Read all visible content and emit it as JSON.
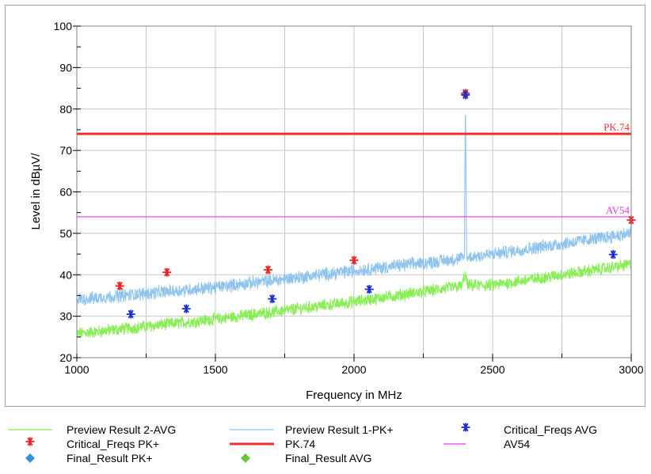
{
  "chart_data": {
    "type": "line",
    "xlabel": "Frequency in MHz",
    "ylabel": "Level in dBµV/",
    "xlim": [
      1000,
      3000
    ],
    "ylim": [
      20,
      100
    ],
    "x_ticks": [
      "1000",
      "1500",
      "2000",
      "2500",
      "3000"
    ],
    "y_ticks": [
      "20",
      "30",
      "40",
      "50",
      "60",
      "70",
      "80",
      "90",
      "100"
    ],
    "grid": true,
    "legend_position": "bottom",
    "series": [
      {
        "name": "Preview Result 2-AVG",
        "kind": "noise-band",
        "color": "#88ee55",
        "points": [
          [
            1000,
            25.8
          ],
          [
            1500,
            29.3
          ],
          [
            2000,
            33.5
          ],
          [
            2390,
            37.3
          ],
          [
            2400,
            40.2
          ],
          [
            2410,
            37.4
          ],
          [
            2500,
            37.5
          ],
          [
            3000,
            42.5
          ]
        ],
        "ripple": 1.3
      },
      {
        "name": "Preview Result 1-PK+",
        "kind": "noise-band",
        "color": "#8fc4f0",
        "points": [
          [
            1000,
            34.0
          ],
          [
            1500,
            37.0
          ],
          [
            2000,
            41.0
          ],
          [
            2398,
            44.0
          ],
          [
            2402,
            83.5
          ],
          [
            2406,
            44.2
          ],
          [
            2500,
            45.0
          ],
          [
            3000,
            50.0
          ]
        ],
        "ripple": 1.4
      },
      {
        "name": "Critical_Freqs PK+",
        "kind": "markers",
        "marker": "star",
        "color": "#ee2222",
        "points": [
          [
            1155,
            37.3
          ],
          [
            1325,
            40.6
          ],
          [
            1690,
            41.2
          ],
          [
            2000,
            43.5
          ],
          [
            2402,
            83.8
          ],
          [
            3000,
            53.2
          ]
        ]
      },
      {
        "name": "Critical_Freqs AVG",
        "kind": "markers",
        "marker": "star",
        "color": "#1a2fd0",
        "points": [
          [
            1195,
            30.5
          ],
          [
            1395,
            31.8
          ],
          [
            1705,
            34.2
          ],
          [
            2055,
            36.5
          ],
          [
            2402,
            83.4
          ],
          [
            2935,
            44.9
          ]
        ]
      },
      {
        "name": "PK.74",
        "kind": "limit",
        "color": "#ee3030",
        "value": 74,
        "label": "PK.74"
      },
      {
        "name": "AV54",
        "kind": "limit",
        "color": "#ee33ee",
        "value": 54,
        "label": "AV54"
      },
      {
        "name": "Final_Result PK+",
        "kind": "markers",
        "marker": "diamond",
        "color": "#3a8ee0",
        "points": []
      },
      {
        "name": "Final_Result AVG",
        "kind": "markers",
        "marker": "diamond",
        "color": "#66c640",
        "points": []
      }
    ],
    "limit_labels": {
      "pk": "PK.74",
      "av": "AV54"
    }
  },
  "legend": [
    {
      "label": "Preview Result 2-AVG",
      "symbol": "line",
      "color": "#88ee55"
    },
    {
      "label": "Preview Result 1-PK+",
      "symbol": "line",
      "color": "#8fc4f0"
    },
    {
      "label": "Critical_Freqs AVG",
      "symbol": "star",
      "color": "#1a2fd0"
    },
    {
      "label": "Critical_Freqs PK+",
      "symbol": "star",
      "color": "#ee2222"
    },
    {
      "label": "PK.74",
      "symbol": "thick-line",
      "color": "#ee3030"
    },
    {
      "label": "AV54",
      "symbol": "line",
      "color": "#ee33ee"
    },
    {
      "label": "Final_Result PK+",
      "symbol": "diamond",
      "color": "#3a8ee0"
    },
    {
      "label": "Final_Result AVG",
      "symbol": "diamond",
      "color": "#66c640"
    }
  ]
}
